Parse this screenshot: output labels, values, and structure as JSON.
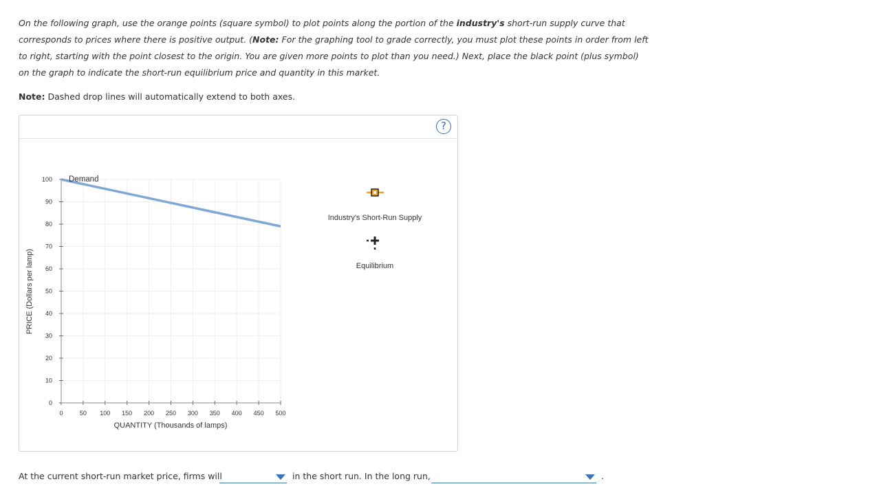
{
  "instructions": {
    "p1": "On the following graph, use the orange points (square symbol) to plot points along the portion of the ",
    "p1_bold": "industry's",
    "p2": " short-run supply curve that corresponds to prices where there is positive output. (",
    "p2_bold": "Note:",
    "p3": " For the graphing tool to grade correctly, you must plot these points in order from left to right, starting with the point closest to the origin. You are given more points to plot than you need.) Next, place the black point (plus symbol) on the graph to indicate the short-run equilibrium price and quantity in this market."
  },
  "note": {
    "label": "Note:",
    "text": " Dashed drop lines will automatically extend to both axes."
  },
  "help": {
    "label": "?"
  },
  "graph": {
    "ylabel": "PRICE (Dollars per lamp)",
    "xlabel": "QUANTITY (Thousands of lamps)",
    "y_ticks": [
      "100",
      "90",
      "80",
      "70",
      "60",
      "50",
      "40",
      "30",
      "20",
      "10",
      "0"
    ],
    "x_ticks": [
      "0",
      "50",
      "100",
      "150",
      "200",
      "250",
      "300",
      "350",
      "400",
      "450",
      "500"
    ],
    "demand_label": "Demand",
    "demand_color": "#7fa7d4",
    "supply_symbol_color": "#f7a21b",
    "supply_label": "Industry's Short-Run Supply",
    "equilibrium_label": "Equilibrium"
  },
  "chart_data": {
    "type": "line",
    "xlim": [
      0,
      500
    ],
    "ylim": [
      0,
      100
    ],
    "xlabel": "QUANTITY (Thousands of lamps)",
    "ylabel": "PRICE (Dollars per lamp)",
    "grid": true,
    "series": [
      {
        "name": "Demand",
        "x": [
          0,
          500
        ],
        "y": [
          100,
          79
        ]
      }
    ]
  },
  "question": {
    "part1": "At the current short-run market price, firms will",
    "part2": "in the short run. In the long run,",
    "end": ".",
    "dropdown1_value": "",
    "dropdown2_value": ""
  }
}
